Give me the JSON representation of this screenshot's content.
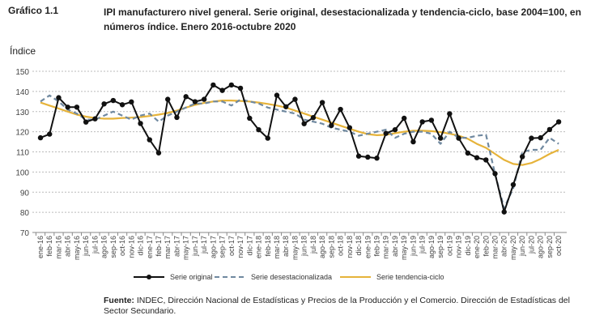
{
  "header": {
    "label": "Gráfico 1.1",
    "title": "IPI manufacturero nivel general. Serie original, desestacionalizada y tendencia-ciclo, base 2004=100, en números índice. Enero 2016-octubre 2020"
  },
  "footer": {
    "source_label": "Fuente:",
    "source_text": " INDEC, Dirección Nacional de Estadísticas y Precios de la Producción y el Comercio. Dirección de Estadísticas del Sector Secundario."
  },
  "chart_data": {
    "type": "line",
    "ylabel": "Índice",
    "ylim": [
      70,
      150
    ],
    "yticks": [
      70,
      80,
      90,
      100,
      110,
      120,
      130,
      140,
      150
    ],
    "grid": true,
    "legend": "bottom",
    "categories": [
      "ene-16",
      "feb-16",
      "mar-16",
      "abr-16",
      "may-16",
      "jun-16",
      "jul-16",
      "ago-16",
      "sep-16",
      "oct-16",
      "nov-16",
      "dic-16",
      "ene-17",
      "feb-17",
      "mar-17",
      "abr-17",
      "may-17",
      "jun-17",
      "jul-17",
      "ago-17",
      "sep-17",
      "oct-17",
      "nov-17",
      "dic-17",
      "ene-18",
      "feb-18",
      "mar-18",
      "abr-18",
      "may-18",
      "jun-18",
      "jul-18",
      "ago-18",
      "sep-18",
      "oct-18",
      "nov-18",
      "dic-18",
      "ene-19",
      "feb-19",
      "mar-19",
      "abr-19",
      "may-19",
      "jun-19",
      "jul-19",
      "ago-19",
      "sep-19",
      "oct-19",
      "nov-19",
      "dic-19",
      "ene-20",
      "feb-20",
      "mar-20",
      "abr-20",
      "may-20",
      "jun-20",
      "jul-20",
      "ago-20",
      "sep-20",
      "oct-20"
    ],
    "series": [
      {
        "name": "Serie original",
        "color": "#111111",
        "style": "solid-markers",
        "values": [
          117,
          118.8,
          136.9,
          132.2,
          132.2,
          124.8,
          126.4,
          133.8,
          135.5,
          133.4,
          134.8,
          124.1,
          116,
          109.5,
          136.1,
          127.1,
          137.4,
          134.9,
          136.1,
          143.2,
          140.5,
          143.2,
          141.6,
          126.7,
          121,
          116.8,
          138.1,
          132.4,
          136.1,
          124,
          127,
          134.5,
          123.1,
          131.1,
          122,
          107.9,
          107.4,
          106.9,
          119.2,
          121,
          126.7,
          115,
          124.9,
          125.7,
          116.8,
          128.9,
          116.8,
          109.4,
          107.1,
          106,
          99.2,
          80.2,
          93.7,
          107.6,
          116.8,
          117,
          121.1,
          124.9
        ]
      },
      {
        "name": "Serie desestacionalizada",
        "color": "#7089a0",
        "style": "dashed",
        "values": [
          135,
          138,
          135,
          131,
          129,
          126,
          126,
          128,
          130,
          128,
          126,
          128,
          129,
          125,
          128,
          130,
          132,
          134,
          134,
          135,
          135,
          133,
          136,
          135,
          134,
          132,
          131,
          130,
          129,
          126,
          125,
          124,
          122,
          121,
          120,
          118,
          119,
          120,
          121,
          117,
          119,
          120,
          120,
          119,
          114,
          120,
          117,
          117,
          118,
          118.5,
          99,
          82,
          92,
          110,
          111,
          111,
          117,
          114
        ]
      },
      {
        "name": "Serie tendencia-ciclo",
        "color": "#e6b33a",
        "style": "solid",
        "values": [
          134.5,
          133,
          131.5,
          130,
          128.5,
          127.5,
          126.8,
          126.5,
          126.5,
          126.8,
          127,
          127.3,
          127.8,
          128.5,
          129.3,
          130.5,
          132,
          133.3,
          134.3,
          135,
          135.5,
          135.5,
          135.3,
          135,
          134.5,
          133.8,
          133,
          132,
          130.5,
          129,
          127.5,
          126,
          124.5,
          123,
          121.5,
          120,
          118.8,
          118.3,
          118.5,
          119.3,
          120,
          120.5,
          120.5,
          120.3,
          119.8,
          119,
          118,
          116.5,
          114,
          112,
          109,
          106,
          104,
          103.5,
          104.5,
          106.5,
          109,
          111
        ]
      }
    ]
  }
}
